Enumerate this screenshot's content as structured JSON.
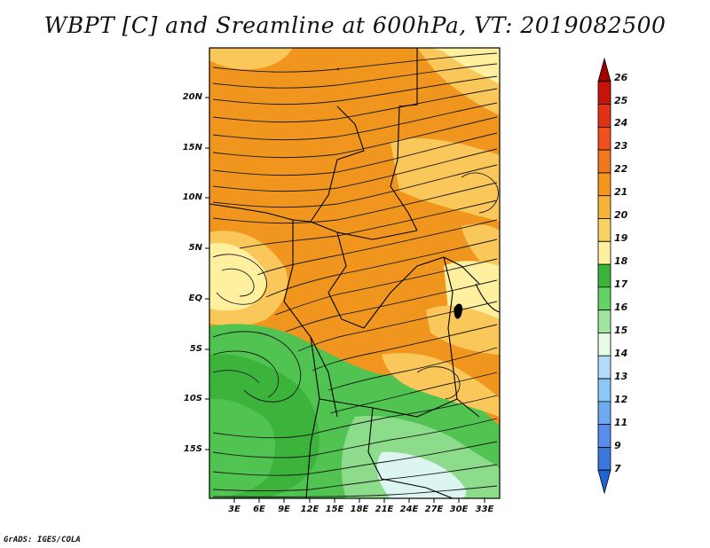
{
  "title": "WBPT [C] and Sreamline at 600hPa, VT: 2019082500",
  "credit": "GrADS: IGES/COLA",
  "lat_labels": [
    "20N",
    "15N",
    "10N",
    "5N",
    "EQ",
    "5S",
    "10S",
    "15S"
  ],
  "lon_labels": [
    "3E",
    "6E",
    "9E",
    "12E",
    "15E",
    "18E",
    "21E",
    "24E",
    "27E",
    "30E",
    "33E"
  ],
  "colorbar": {
    "levels": [
      "26",
      "25",
      "24",
      "23",
      "22",
      "21",
      "20",
      "19",
      "18",
      "17",
      "16",
      "15",
      "14",
      "13",
      "12",
      "11",
      "9",
      "7"
    ],
    "colors": [
      "#a00000",
      "#c8140a",
      "#e03214",
      "#f0501e",
      "#f0781e",
      "#f5961e",
      "#f5b43c",
      "#fad264",
      "#fff0a0",
      "#3cb43c",
      "#64d264",
      "#a0e6a0",
      "#e6fae6",
      "#b4dcfa",
      "#8cc8f5",
      "#6eaaf0",
      "#5a8ceb",
      "#3c78dc",
      "#1e64d2"
    ]
  },
  "map_colors": {
    "hot": "#f0961e",
    "warm": "#fac85a",
    "mild": "#fff0a0",
    "cool": "#50c350",
    "cooler": "#8cdc8c",
    "coolest": "#dcf5f0",
    "streamline": "#1a1a1a",
    "border": "#000000"
  }
}
